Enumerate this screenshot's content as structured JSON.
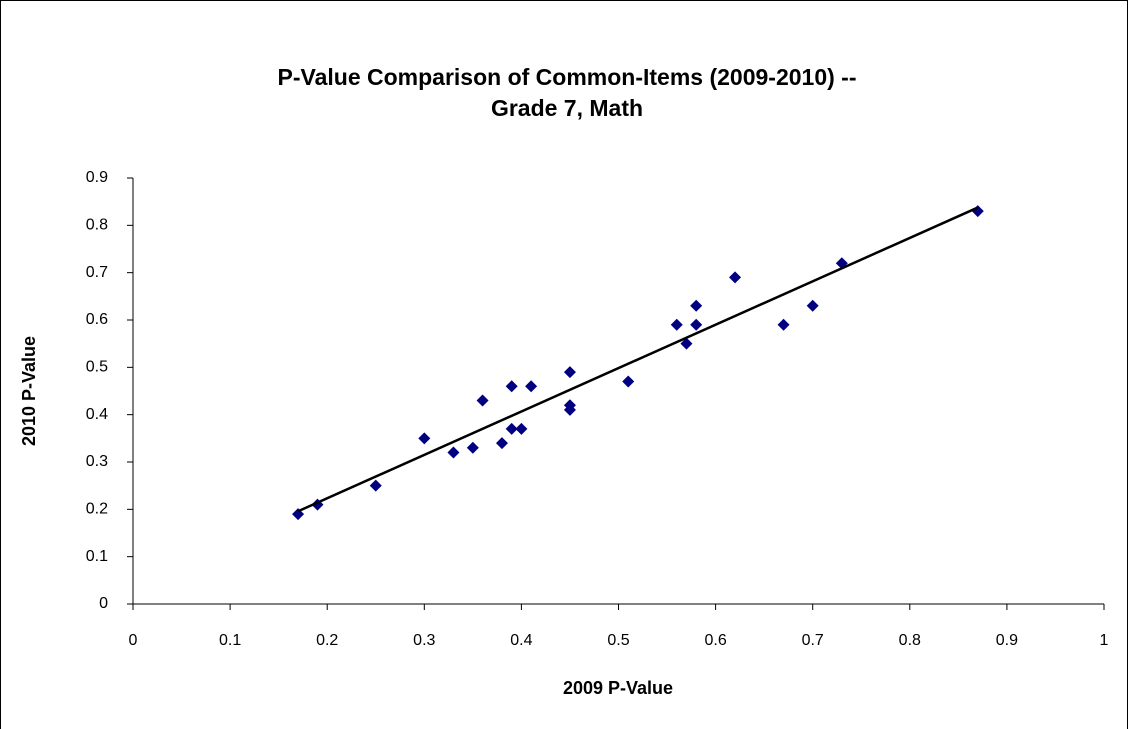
{
  "chart_data": {
    "type": "scatter",
    "title": [
      "P-Value Comparison of Common-Items (2009-2010) --",
      "Grade 7, Math"
    ],
    "x_label": "2009 P-Value",
    "y_label": "2010 P-Value",
    "color": "#000080",
    "trendline": "linear",
    "trendline_color": "#000000",
    "xlim": [
      0,
      1
    ],
    "xticks": [
      0,
      0.1,
      0.2,
      0.3,
      0.4,
      0.5,
      0.6,
      0.7,
      0.8,
      0.9,
      1
    ],
    "ylim": [
      0,
      0.9
    ],
    "yticks": [
      0,
      0.1,
      0.2,
      0.3,
      0.4,
      0.5,
      0.6,
      0.7,
      0.8,
      0.9
    ],
    "grid": false,
    "x": [
      0.17,
      0.19,
      0.25,
      0.3,
      0.33,
      0.35,
      0.36,
      0.38,
      0.39,
      0.39,
      0.4,
      0.41,
      0.45,
      0.45,
      0.45,
      0.51,
      0.56,
      0.57,
      0.58,
      0.58,
      0.62,
      0.67,
      0.7,
      0.73,
      0.87
    ],
    "values": [
      0.19,
      0.21,
      0.25,
      0.35,
      0.32,
      0.33,
      0.43,
      0.34,
      0.46,
      0.37,
      0.37,
      0.46,
      0.49,
      0.42,
      0.41,
      0.47,
      0.59,
      0.55,
      0.63,
      0.59,
      0.69,
      0.59,
      0.63,
      0.72,
      0.83
    ]
  }
}
